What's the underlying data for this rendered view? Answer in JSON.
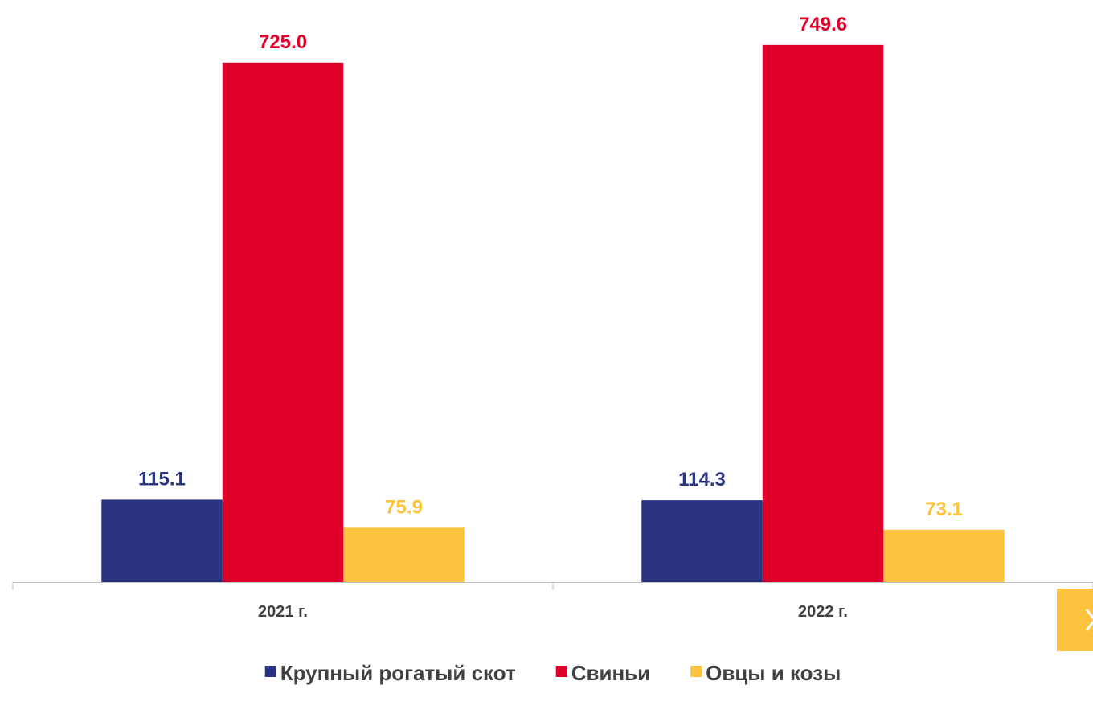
{
  "chart_data": {
    "type": "bar",
    "categories": [
      "2021 г.",
      "2022 г."
    ],
    "series": [
      {
        "name": "Крупный рогатый скот",
        "color": "#2b3483",
        "values": [
          115.1,
          114.3
        ],
        "value_labels": [
          "115.1",
          "114.3"
        ]
      },
      {
        "name": "Свиньи",
        "color": "#e0002a",
        "values": [
          725,
          749.6
        ],
        "value_labels": [
          "725.0",
          "749.6"
        ]
      },
      {
        "name": "Овцы и козы",
        "color": "#fdc33f",
        "values": [
          75.9,
          73.1
        ],
        "value_labels": [
          "75.9",
          "73.1"
        ]
      }
    ],
    "ylim": [
      0,
      810
    ],
    "legend": "bottom"
  }
}
